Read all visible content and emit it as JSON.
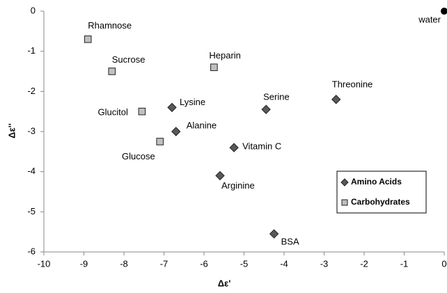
{
  "chart_data": {
    "type": "scatter",
    "x_label": "Δε'",
    "y_label": "Δε''",
    "xlim": [
      -10,
      0
    ],
    "xticks": [
      -10,
      -9,
      -8,
      -7,
      -6,
      -5,
      -4,
      -3,
      -2,
      -1,
      0
    ],
    "ylim": [
      -6,
      0
    ],
    "yticks": [
      0,
      -1,
      -2,
      -3,
      -4,
      -5,
      -6
    ],
    "grid": false,
    "legend": "lower right",
    "series": [
      {
        "name": "Amino Acids",
        "color": "#595959",
        "marker": "diamond",
        "labels": [
          "Lysine",
          "Alanine",
          "Serine",
          "Threonine",
          "Vitamin C",
          "Arginine",
          "BSA"
        ],
        "x": [
          -6.8,
          -6.7,
          -4.45,
          -2.7,
          -5.25,
          -5.6,
          -4.25
        ],
        "values": [
          -2.4,
          -3.0,
          -2.45,
          -2.2,
          -3.4,
          -4.1,
          -5.55
        ]
      },
      {
        "name": "Carbohydrates",
        "color": "#bfbfbf",
        "marker": "square",
        "labels": [
          "Rhamnose",
          "Sucrose",
          "Heparin",
          "Glucitol",
          "Glucose"
        ],
        "x": [
          -8.9,
          -8.3,
          -5.75,
          -7.55,
          -7.1
        ],
        "values": [
          -0.7,
          -1.5,
          -1.4,
          -2.5,
          -3.25
        ]
      }
    ],
    "annotations": [
      {
        "text": "water",
        "x": 0,
        "y": 0
      }
    ]
  }
}
